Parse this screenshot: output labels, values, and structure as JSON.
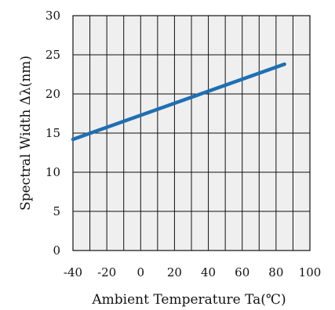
{
  "chart_data": {
    "type": "line",
    "title": "",
    "xlabel": "Ambient Temperature Ta(℃)",
    "ylabel": "Spectral Width Δλ(nm)",
    "xlim": [
      -40,
      100
    ],
    "ylim": [
      0,
      30
    ],
    "x_ticks": [
      -40,
      -20,
      0,
      20,
      40,
      60,
      80,
      100
    ],
    "y_ticks": [
      0,
      5,
      10,
      15,
      20,
      25,
      30
    ],
    "x_tick_labels": [
      "-40",
      "-20",
      "0",
      "20",
      "40",
      "60",
      "80",
      "100"
    ],
    "y_tick_labels": [
      "0",
      "5",
      "10",
      "15",
      "20",
      "25",
      "30"
    ],
    "grid": true,
    "series": [
      {
        "x": [
          -40,
          85
        ],
        "y": [
          14.2,
          23.8
        ],
        "color": "#1f6fb2"
      }
    ]
  },
  "colors": {
    "plot_background": "#efefef",
    "grid": "#111111",
    "frame_outer": "#bdbdbd"
  }
}
